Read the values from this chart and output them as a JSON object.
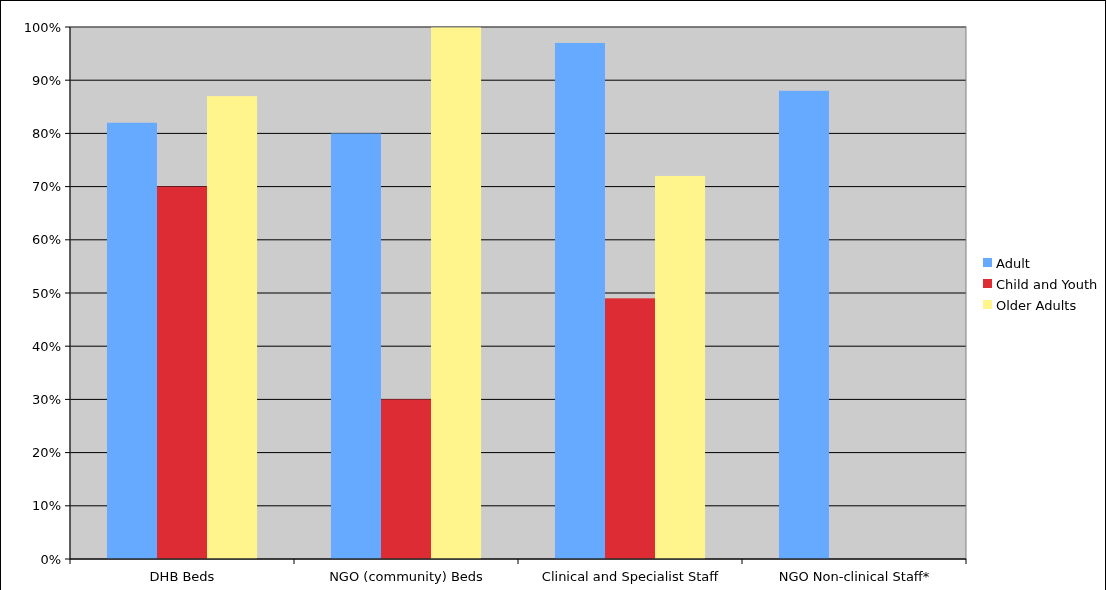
{
  "chart_data": {
    "type": "bar",
    "categories": [
      "DHB Beds",
      "NGO (community) Beds",
      "Clinical and Specialist Staff",
      "NGO Non-clinical Staff*"
    ],
    "series": [
      {
        "name": "Adult",
        "color": "#66aaff",
        "values": [
          82,
          80,
          97,
          88
        ]
      },
      {
        "name": "Child and Youth",
        "color": "#dd2c33",
        "values": [
          70,
          30,
          49,
          null
        ]
      },
      {
        "name": "Older Adults",
        "color": "#fff58c",
        "values": [
          87,
          100,
          72,
          null
        ]
      }
    ],
    "ylim": [
      0,
      100
    ],
    "yticks": [
      {
        "value": 0,
        "label": "0%"
      },
      {
        "value": 10,
        "label": "10%"
      },
      {
        "value": 20,
        "label": "20%"
      },
      {
        "value": 30,
        "label": "30%"
      },
      {
        "value": 40,
        "label": "40%"
      },
      {
        "value": 50,
        "label": "50%"
      },
      {
        "value": 60,
        "label": "60%"
      },
      {
        "value": 70,
        "label": "70%"
      },
      {
        "value": 80,
        "label": "80%"
      },
      {
        "value": 90,
        "label": "90%"
      },
      {
        "value": 100,
        "label": "100%"
      }
    ],
    "grid": "y",
    "legend": "right"
  }
}
